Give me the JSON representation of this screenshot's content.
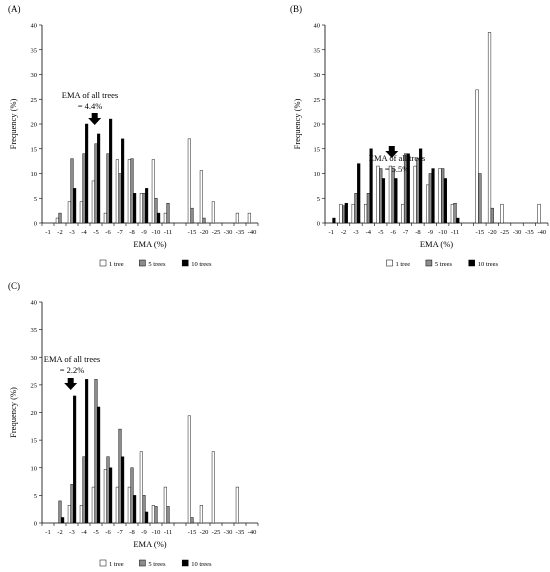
{
  "chart_data": [
    {
      "type": "bar",
      "panel_label": "(A)",
      "xlabel": "EMA (%)",
      "ylabel": "Frequency (%)",
      "ylim": [
        0,
        40
      ],
      "yticks": [
        0,
        5,
        10,
        15,
        20,
        25,
        30,
        35,
        40
      ],
      "grid": false,
      "legend_position": "bottom-center",
      "categories": [
        "-1",
        "-2",
        "-3",
        "-4",
        "-5",
        "-6",
        "-7",
        "-8",
        "-9",
        "-10",
        "-11",
        "",
        "-15",
        "-20",
        "-25",
        "-30",
        "-35",
        "-40"
      ],
      "series": [
        {
          "name": "1 tree",
          "values": [
            0,
            1,
            4.3,
            4.3,
            8.5,
            2,
            12.8,
            12.8,
            6,
            12.8,
            2,
            0,
            17,
            10.6,
            4.3,
            0,
            2,
            2
          ]
        },
        {
          "name": "5 trees",
          "values": [
            0,
            2,
            13,
            14,
            16,
            14,
            10,
            13,
            6,
            5,
            4,
            0,
            3,
            1,
            0,
            0,
            0,
            0
          ]
        },
        {
          "name": "10 trees",
          "values": [
            0,
            0,
            7,
            20,
            18,
            21,
            17,
            6,
            7,
            2,
            0,
            0,
            0,
            0,
            0,
            0,
            0,
            0
          ]
        }
      ],
      "annotation": {
        "line1": "EMA of all trees",
        "line2": "= 4.4%"
      },
      "annotation_arrow_category_index": 4
    },
    {
      "type": "bar",
      "panel_label": "(B)",
      "xlabel": "EMA (%)",
      "ylabel": "Frequency (%)",
      "ylim": [
        0,
        40
      ],
      "yticks": [
        0,
        5,
        10,
        15,
        20,
        25,
        30,
        35,
        40
      ],
      "grid": false,
      "legend_position": "bottom-center",
      "categories": [
        "-1",
        "-2",
        "-3",
        "-4",
        "-5",
        "-6",
        "-7",
        "-8",
        "-9",
        "-10",
        "-11",
        "",
        "-15",
        "-20",
        "-25",
        "-30",
        "-35",
        "-40"
      ],
      "series": [
        {
          "name": "1 tree",
          "values": [
            0,
            3.8,
            3.8,
            3.8,
            11.5,
            11.5,
            3.8,
            11.5,
            7.7,
            11,
            3.8,
            0,
            26.9,
            38.5,
            3.8,
            0,
            0,
            3.8
          ]
        },
        {
          "name": "5 trees",
          "values": [
            0,
            3.5,
            6,
            6,
            11,
            11,
            14,
            13,
            10,
            11,
            4,
            0,
            10,
            3,
            0,
            0,
            0,
            0
          ]
        },
        {
          "name": "10 trees",
          "values": [
            1,
            4,
            12,
            15,
            9,
            9,
            14,
            15,
            11,
            9,
            1,
            0,
            0,
            0,
            0,
            0,
            0,
            0
          ]
        }
      ],
      "annotation": {
        "line1": "EMA of all trees",
        "line2": "= 5.5%"
      },
      "annotation_arrow_category_index": 5
    },
    {
      "type": "bar",
      "panel_label": "(C)",
      "xlabel": "EMA (%)",
      "ylabel": "Frequency (%)",
      "ylim": [
        0,
        40
      ],
      "yticks": [
        0,
        5,
        10,
        15,
        20,
        25,
        30,
        35,
        40
      ],
      "grid": false,
      "legend_position": "bottom-center",
      "categories": [
        "-1",
        "-2",
        "-3",
        "-4",
        "-5",
        "-6",
        "-7",
        "-8",
        "-9",
        "-10",
        "-11",
        "",
        "-15",
        "-20",
        "-25",
        "-30",
        "-35",
        "-40"
      ],
      "series": [
        {
          "name": "1 tree",
          "values": [
            0,
            0,
            3.2,
            3.2,
            6.5,
            9.7,
            6.5,
            6.5,
            12.9,
            3.2,
            6.5,
            0,
            19.4,
            3.2,
            12.9,
            0,
            6.5,
            0
          ]
        },
        {
          "name": "5 trees",
          "values": [
            0,
            4,
            7,
            12,
            26,
            12,
            17,
            10,
            5,
            3,
            3,
            0,
            1,
            0,
            0,
            0,
            0,
            0
          ]
        },
        {
          "name": "10 trees",
          "values": [
            0,
            1,
            23,
            26,
            21,
            10,
            12,
            5,
            2,
            0,
            0,
            0,
            0,
            0,
            0,
            0,
            0,
            0
          ]
        }
      ],
      "annotation": {
        "line1": "EMA of all trees",
        "line2": "= 2.2%"
      },
      "annotation_arrow_category_index": 2
    }
  ],
  "colors": {
    "1 tree": "#ffffff",
    "5 trees": "#8c8c8c",
    "10 trees": "#000000",
    "stroke": "#000000"
  }
}
